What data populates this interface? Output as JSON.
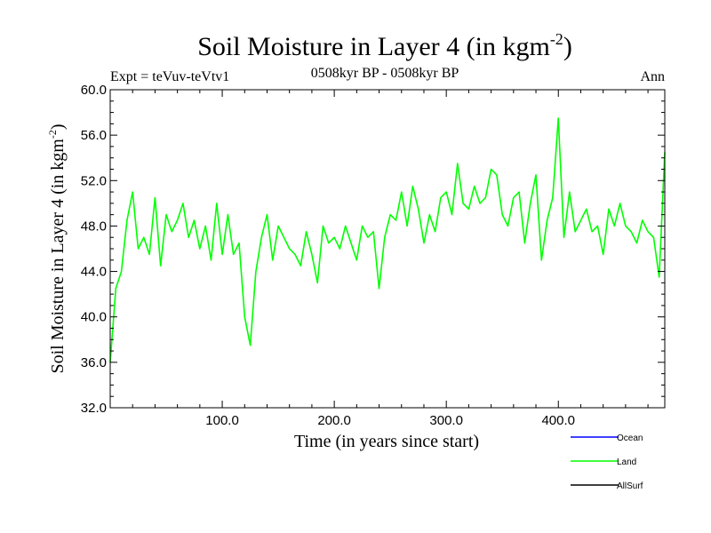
{
  "chart_data": {
    "type": "line",
    "title": "Soil Moisture in Layer 4 (in kgm",
    "title_sup": "-2",
    "title_close": ")",
    "subtitle": "0508kyr BP - 0508kyr BP",
    "left_label": "Expt = teVuv-teVtv1",
    "right_label": "Ann",
    "xlabel": "Time (in years since start)",
    "ylabel": "Soil Moisture in Layer 4 (in kgm",
    "ylabel_sup": "-2",
    "ylabel_close": ")",
    "xlim": [
      0,
      495
    ],
    "ylim": [
      32,
      60
    ],
    "x_ticks": [
      100,
      200,
      300,
      400
    ],
    "x_tick_labels": [
      "100.0",
      "200.0",
      "300.0",
      "400.0"
    ],
    "y_ticks": [
      32,
      36,
      40,
      44,
      48,
      52,
      56,
      60
    ],
    "y_tick_labels": [
      "32.0",
      "36.0",
      "40.0",
      "44.0",
      "48.0",
      "52.0",
      "56.0",
      "60.0"
    ],
    "legend_position": "bottom-right",
    "series": [
      {
        "name": "Ocean",
        "color": "#0000ff",
        "values": []
      },
      {
        "name": "Land",
        "color": "#00ff00",
        "x": [
          0,
          5,
          10,
          15,
          20,
          25,
          30,
          35,
          40,
          45,
          50,
          55,
          60,
          65,
          70,
          75,
          80,
          85,
          90,
          95,
          100,
          105,
          110,
          115,
          120,
          125,
          130,
          135,
          140,
          145,
          150,
          155,
          160,
          165,
          170,
          175,
          180,
          185,
          190,
          195,
          200,
          205,
          210,
          215,
          220,
          225,
          230,
          235,
          240,
          245,
          250,
          255,
          260,
          265,
          270,
          275,
          280,
          285,
          290,
          295,
          300,
          305,
          310,
          315,
          320,
          325,
          330,
          335,
          340,
          345,
          350,
          355,
          360,
          365,
          370,
          375,
          380,
          385,
          390,
          395,
          400,
          405,
          410,
          415,
          420,
          425,
          430,
          435,
          440,
          445,
          450,
          455,
          460,
          465,
          470,
          475,
          480,
          485,
          490,
          495
        ],
        "values": [
          36.0,
          42.5,
          44.0,
          48.5,
          51.0,
          46.0,
          47.0,
          45.5,
          50.5,
          44.5,
          49.0,
          47.5,
          48.5,
          50.0,
          47.0,
          48.5,
          46.0,
          48.0,
          45.0,
          50.0,
          45.5,
          49.0,
          45.5,
          46.5,
          40.0,
          37.5,
          44.0,
          47.0,
          49.0,
          45.0,
          48.0,
          47.0,
          46.0,
          45.5,
          44.5,
          47.5,
          45.5,
          43.0,
          48.0,
          46.5,
          47.0,
          46.0,
          48.0,
          46.5,
          45.0,
          48.0,
          47.0,
          47.5,
          42.5,
          47.0,
          49.0,
          48.5,
          51.0,
          48.0,
          51.5,
          49.5,
          46.5,
          49.0,
          47.5,
          50.5,
          51.0,
          49.0,
          53.5,
          50.0,
          49.5,
          51.5,
          50.0,
          50.5,
          53.0,
          52.5,
          49.0,
          48.0,
          50.5,
          51.0,
          46.5,
          50.0,
          52.5,
          45.0,
          48.5,
          50.5,
          57.5,
          47.0,
          51.0,
          47.5,
          48.5,
          49.5,
          47.5,
          48.0,
          45.5,
          49.5,
          48.0,
          50.0,
          48.0,
          47.5,
          46.5,
          48.5,
          47.5,
          47.0,
          43.5,
          54.5
        ]
      },
      {
        "name": "AllSurf",
        "color": "#000000",
        "values": []
      }
    ]
  }
}
